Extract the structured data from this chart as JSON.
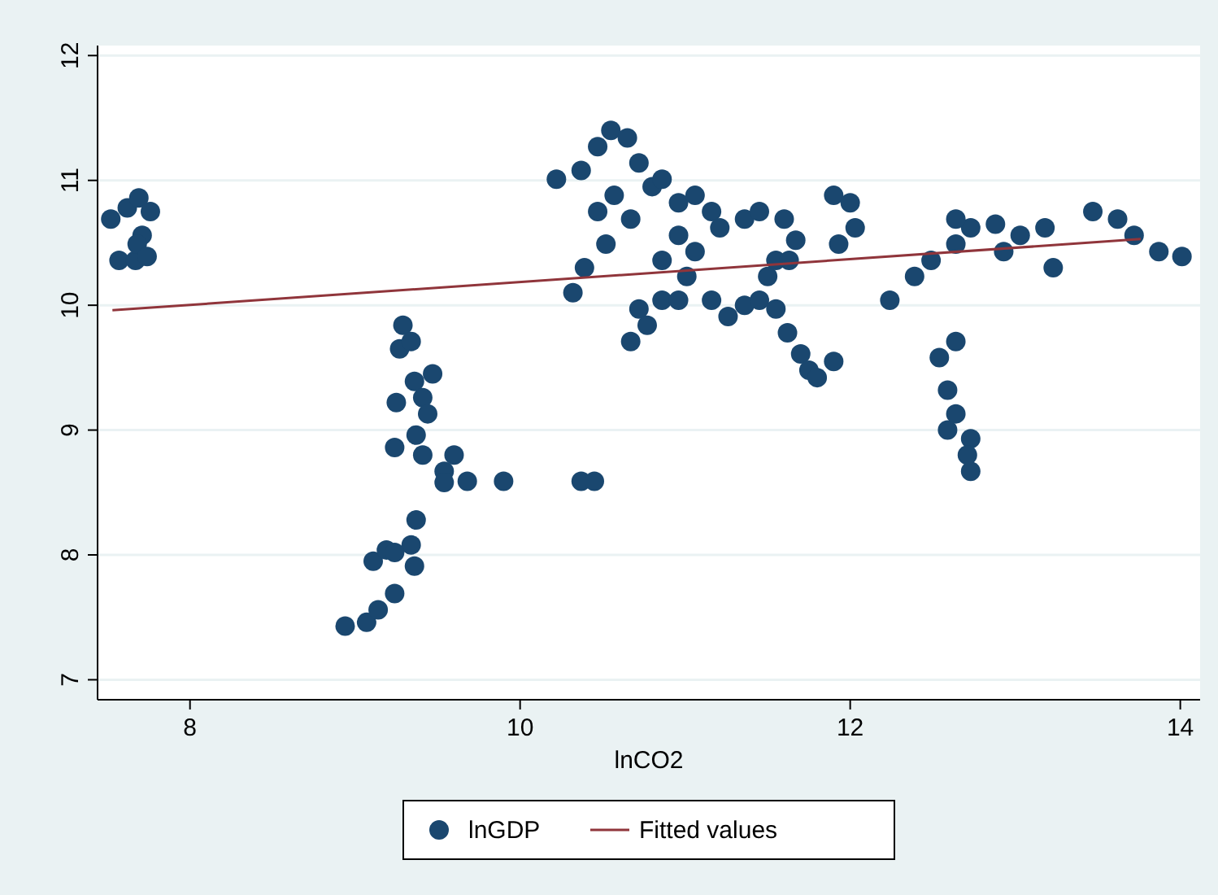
{
  "chart_data": {
    "type": "scatter",
    "xlabel": "lnCO2",
    "xlim": [
      7.44,
      14.12
    ],
    "ylim": [
      6.84,
      12.08
    ],
    "xticks": [
      8,
      10,
      12,
      14
    ],
    "yticks": [
      7,
      8,
      9,
      10,
      11,
      12
    ],
    "grid": "y",
    "legend": "bottom",
    "series": [
      {
        "name": "lnGDP",
        "marker": "circle",
        "color": "#1a476f",
        "x": [
          7.52,
          7.57,
          7.67,
          7.62,
          7.69,
          7.76,
          7.71,
          7.68,
          7.74,
          8.94,
          9.07,
          9.14,
          9.24,
          9.11,
          9.19,
          9.34,
          9.37,
          9.36,
          9.24,
          9.29,
          9.27,
          9.34,
          9.36,
          9.41,
          9.47,
          9.44,
          9.25,
          9.24,
          9.37,
          9.41,
          9.54,
          9.6,
          9.54,
          9.68,
          9.9,
          10.37,
          10.45,
          10.22,
          10.37,
          10.47,
          10.55,
          10.65,
          10.72,
          10.8,
          10.57,
          10.47,
          10.86,
          10.96,
          11.06,
          11.16,
          10.96,
          10.86,
          11.01,
          11.06,
          11.21,
          10.32,
          10.39,
          10.52,
          10.67,
          10.72,
          10.77,
          10.67,
          10.86,
          10.96,
          11.16,
          11.36,
          11.26,
          11.45,
          11.5,
          11.55,
          11.36,
          11.45,
          11.6,
          11.67,
          11.63,
          11.55,
          11.62,
          11.7,
          11.75,
          11.8,
          11.9,
          11.9,
          12.0,
          12.03,
          11.93,
          12.24,
          12.39,
          12.49,
          12.64,
          12.73,
          12.88,
          13.03,
          13.18,
          13.23,
          12.93,
          12.64,
          12.54,
          12.64,
          12.59,
          12.64,
          12.59,
          12.73,
          12.73,
          12.71,
          13.47,
          13.62,
          13.72,
          13.87,
          14.01
        ],
        "values": [
          10.69,
          10.36,
          10.36,
          10.78,
          10.86,
          10.75,
          10.56,
          10.49,
          10.39,
          7.43,
          7.46,
          7.56,
          7.69,
          7.95,
          8.04,
          8.08,
          8.28,
          7.91,
          8.02,
          9.84,
          9.65,
          9.71,
          9.39,
          9.26,
          9.45,
          9.13,
          9.22,
          8.86,
          8.96,
          8.8,
          8.67,
          8.8,
          8.58,
          8.59,
          8.59,
          8.59,
          8.59,
          11.01,
          11.08,
          11.27,
          11.4,
          11.34,
          11.14,
          10.95,
          10.88,
          10.75,
          11.01,
          10.82,
          10.88,
          10.75,
          10.56,
          10.36,
          10.23,
          10.43,
          10.62,
          10.1,
          10.3,
          10.49,
          10.69,
          9.97,
          9.84,
          9.71,
          10.04,
          10.04,
          10.04,
          10.0,
          9.91,
          10.04,
          10.23,
          10.36,
          10.69,
          10.75,
          10.69,
          10.52,
          10.36,
          9.97,
          9.78,
          9.61,
          9.48,
          9.42,
          9.55,
          10.88,
          10.82,
          10.62,
          10.49,
          10.04,
          10.23,
          10.36,
          10.49,
          10.62,
          10.65,
          10.56,
          10.62,
          10.3,
          10.43,
          10.69,
          9.58,
          9.71,
          9.32,
          9.13,
          9.0,
          8.93,
          8.67,
          8.8,
          10.75,
          10.69,
          10.56,
          10.43,
          10.39
        ]
      },
      {
        "name": "Fitted values",
        "type": "line",
        "color": "#90353b",
        "x": [
          7.53,
          13.76
        ],
        "values": [
          9.96,
          10.53
        ]
      }
    ]
  }
}
